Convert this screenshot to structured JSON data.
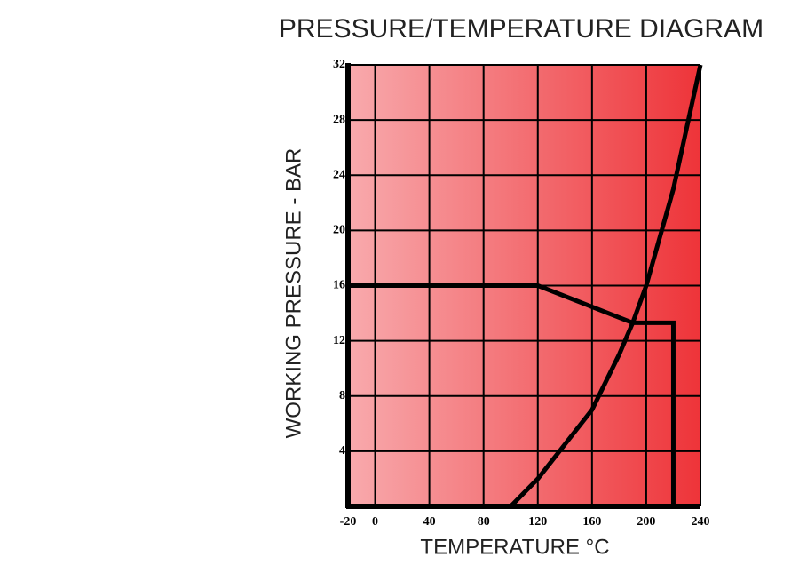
{
  "chart_data": {
    "type": "line",
    "title": "PRESSURE/TEMPERATURE DIAGRAM",
    "x_label": "TEMPERATURE °C",
    "y_label": "WORKING PRESSURE - BAR",
    "xlim": [
      -20,
      240
    ],
    "xticks": [
      -20,
      0,
      40,
      80,
      120,
      160,
      200,
      240
    ],
    "ylim": [
      0,
      32
    ],
    "yticks": [
      4,
      8,
      12,
      16,
      20,
      24,
      28,
      32
    ],
    "grid": true,
    "background_colors": [
      "#f8aaad",
      "#ee3439"
    ],
    "series": [
      {
        "color": "#000000",
        "x": [
          -20,
          120,
          190,
          220,
          220
        ],
        "values": [
          16,
          16,
          13.3,
          13.3,
          0
        ]
      },
      {
        "color": "#000000",
        "x": [
          100,
          120,
          140,
          160,
          180,
          190,
          200,
          220,
          240
        ],
        "values": [
          0,
          2,
          4.5,
          7,
          11,
          13.3,
          16,
          23,
          32
        ]
      }
    ]
  }
}
